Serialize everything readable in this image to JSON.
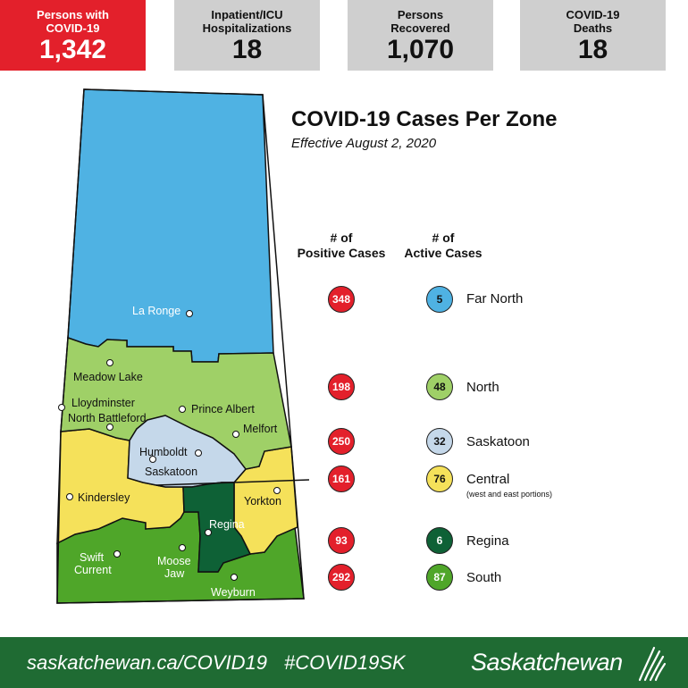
{
  "stats": [
    {
      "label_l1": "Persons with",
      "label_l2": "COVID-19",
      "value": "1,342"
    },
    {
      "label_l1": "Inpatient/ICU",
      "label_l2": "Hospitalizations",
      "value": "18"
    },
    {
      "label_l1": "Persons",
      "label_l2": "Recovered",
      "value": "1,070"
    },
    {
      "label_l1": "COVID-19",
      "label_l2": "Deaths",
      "value": "18"
    }
  ],
  "title": "COVID-19 Cases Per Zone",
  "subtitle": "Effective August 2, 2020",
  "columns": {
    "positive_l1": "# of",
    "positive_l2": "Positive Cases",
    "active_l1": "# of",
    "active_l2": "Active Cases"
  },
  "zones": [
    {
      "name": "Far North",
      "positive": "348",
      "active": "5",
      "color": "#4fb2e3"
    },
    {
      "name": "North",
      "positive": "198",
      "active": "48",
      "color": "#9fd067"
    },
    {
      "name": "Saskatoon",
      "positive": "250",
      "active": "32",
      "color": "#c5d8ea"
    },
    {
      "name": "Central",
      "positive": "161",
      "active": "76",
      "color": "#f5e15a",
      "note": "(west and east portions)"
    },
    {
      "name": "Regina",
      "positive": "93",
      "active": "6",
      "color": "#0e6136"
    },
    {
      "name": "South",
      "positive": "292",
      "active": "87",
      "color": "#4fa629"
    }
  ],
  "positive_color": "#e3202b",
  "cities": {
    "la_ronge": "La Ronge",
    "meadow_lake": "Meadow Lake",
    "lloydminster": "Lloydminster",
    "north_battleford": "North Battleford",
    "prince_albert": "Prince Albert",
    "melfort": "Melfort",
    "humboldt": "Humboldt",
    "saskatoon": "Saskatoon",
    "kindersley": "Kindersley",
    "yorkton": "Yorkton",
    "regina": "Regina",
    "swift_current_l1": "Swift",
    "swift_current_l2": "Current",
    "moose_jaw_l1": "Moose",
    "moose_jaw_l2": "Jaw",
    "weyburn": "Weyburn"
  },
  "footer": {
    "url": "saskatchewan.ca/COVID19",
    "hashtag": "#COVID19SK",
    "brand": "Saskatchewan"
  }
}
